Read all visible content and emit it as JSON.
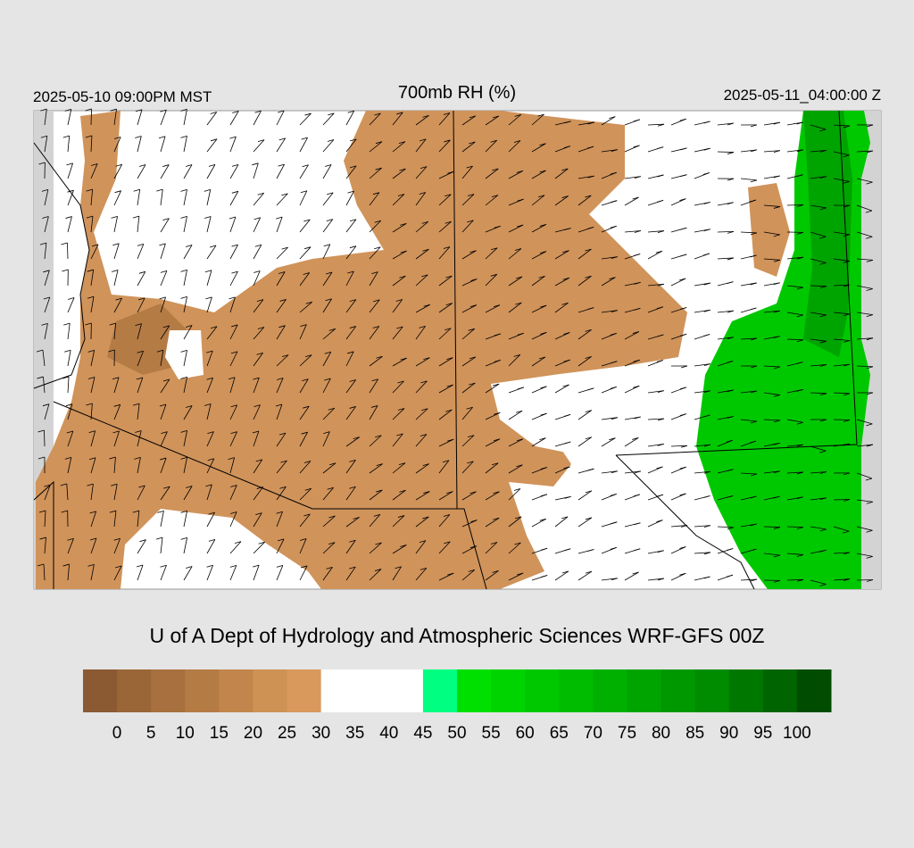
{
  "header": {
    "valid_local": "2025-05-10 09:00PM MST",
    "title": "700mb RH (%)",
    "valid_utc": "2025-05-11_04:00:00 Z"
  },
  "credit": "U of A Dept of Hydrology and Atmospheric Sciences WRF-GFS 00Z",
  "colorbar": {
    "colors": [
      "#8b5a32",
      "#9a6638",
      "#a8703e",
      "#b57b45",
      "#c2864c",
      "#ce9254",
      "#d9995c",
      "#ffffff",
      "#ffffff",
      "#ffffff",
      "#00ff80",
      "#00e000",
      "#00d400",
      "#00c800",
      "#00bc00",
      "#00b000",
      "#00a400",
      "#009800",
      "#008c00",
      "#007800",
      "#006400",
      "#004c00"
    ],
    "labels": [
      0,
      5,
      10,
      15,
      20,
      25,
      30,
      35,
      40,
      45,
      50,
      55,
      60,
      65,
      70,
      75,
      80,
      85,
      90,
      95,
      100
    ]
  }
}
